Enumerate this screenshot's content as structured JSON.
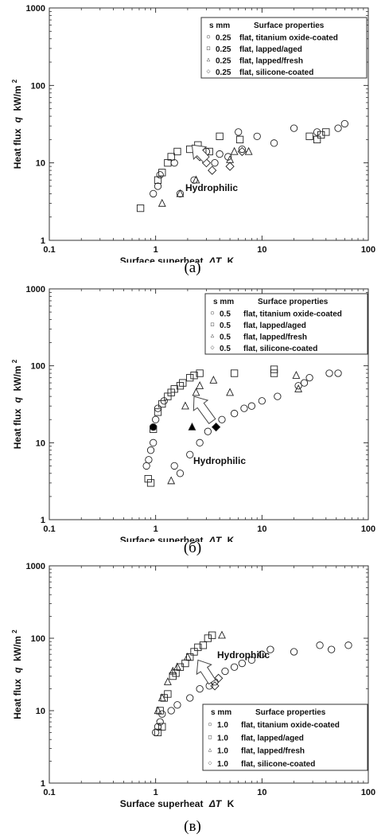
{
  "chart_data": [
    {
      "type": "scatter",
      "caption": "(а)",
      "xlabel": "Surface superheat",
      "xsymbol": "ΔT",
      "xunit": "K",
      "ylabel": "Heat flux",
      "ysymbol": "q",
      "yunit": "kW/m",
      "yunit_sup": "2",
      "xscale": "log",
      "yscale": "log",
      "xlim": [
        0.1,
        100
      ],
      "ylim": [
        1,
        1000
      ],
      "xticks": [
        "0.1",
        "1",
        "10",
        "100"
      ],
      "yticks": [
        "1",
        "10",
        "100",
        "1000"
      ],
      "legend_header": [
        "s mm",
        "Surface properties"
      ],
      "legend_position": "top-right",
      "legend": [
        {
          "s": "0.25",
          "label": "flat, titanium oxide-coated"
        },
        {
          "s": "0.25",
          "label": "flat, lapped/aged"
        },
        {
          "s": "0.25",
          "label": "flat, lapped/fresh"
        },
        {
          "s": "0.25",
          "label": "flat, silicone-coated"
        }
      ],
      "annotation": "Hydrophilic",
      "arrow": {
        "from": [
          3.0,
          11
        ],
        "to": [
          2.2,
          17
        ]
      },
      "series": [
        {
          "marker": "circle",
          "points": [
            [
              0.95,
              4
            ],
            [
              1.05,
              5
            ],
            [
              1.1,
              7
            ],
            [
              1.5,
              10
            ],
            [
              1.7,
              4
            ],
            [
              2.3,
              6
            ],
            [
              3,
              14
            ],
            [
              3.6,
              10
            ],
            [
              4,
              13
            ],
            [
              4.8,
              12
            ],
            [
              6,
              25
            ],
            [
              6.5,
              15
            ],
            [
              9,
              22
            ],
            [
              13,
              18
            ],
            [
              20,
              28
            ],
            [
              33,
              25
            ],
            [
              52,
              28
            ],
            [
              60,
              32
            ]
          ]
        },
        {
          "marker": "square",
          "points": [
            [
              0.72,
              2.6
            ],
            [
              1.05,
              6
            ],
            [
              1.15,
              7.5
            ],
            [
              1.3,
              10
            ],
            [
              1.4,
              12
            ],
            [
              1.6,
              14
            ],
            [
              2.1,
              15
            ],
            [
              2.5,
              17
            ],
            [
              3.2,
              14
            ],
            [
              4,
              22
            ],
            [
              6.2,
              20
            ],
            [
              28,
              22
            ],
            [
              33,
              20
            ],
            [
              36,
              23
            ],
            [
              40,
              25
            ]
          ]
        },
        {
          "marker": "triangle",
          "points": [
            [
              1.15,
              3
            ],
            [
              1.7,
              4
            ],
            [
              2.4,
              6
            ],
            [
              5,
              11
            ],
            [
              5.5,
              14
            ],
            [
              7.5,
              14
            ]
          ]
        },
        {
          "marker": "diamond",
          "points": [
            [
              2.6,
              12
            ],
            [
              3,
              10
            ],
            [
              3.4,
              8
            ],
            [
              5,
              9
            ],
            [
              6.5,
              14
            ]
          ]
        }
      ]
    },
    {
      "type": "scatter",
      "caption": "(б)",
      "xlabel": "Surface superheat",
      "xsymbol": "ΔT",
      "xunit": "K",
      "ylabel": "Heat flux",
      "ysymbol": "q",
      "yunit": "kW/m",
      "yunit_sup": "2",
      "xscale": "log",
      "yscale": "log",
      "xlim": [
        0.1,
        100
      ],
      "ylim": [
        1,
        1000
      ],
      "xticks": [
        "0.1",
        "1",
        "10",
        "100"
      ],
      "yticks": [
        "1",
        "10",
        "100",
        "1000"
      ],
      "legend_header": [
        "s mm",
        "Surface properties"
      ],
      "legend_position": "top-right",
      "legend": [
        {
          "s": "0.5",
          "label": "flat, titanium oxide-coated"
        },
        {
          "s": "0.5",
          "label": "flat, lapped/aged"
        },
        {
          "s": "0.5",
          "label": "flat, lapped/fresh"
        },
        {
          "s": "0.5",
          "label": "flat, silicone-coated"
        }
      ],
      "annotation": "Hydrophilic",
      "arrow": {
        "from": [
          3.4,
          19
        ],
        "to": [
          2.3,
          40
        ]
      },
      "series": [
        {
          "marker": "circle",
          "points": [
            [
              0.82,
              5
            ],
            [
              0.86,
              6
            ],
            [
              0.9,
              8
            ],
            [
              0.95,
              10
            ],
            [
              1.0,
              20
            ],
            [
              1.05,
              28
            ],
            [
              1.2,
              35
            ],
            [
              1.5,
              5
            ],
            [
              1.7,
              4
            ],
            [
              2.1,
              7
            ],
            [
              2.6,
              10
            ],
            [
              3.1,
              14
            ],
            [
              4.2,
              20
            ],
            [
              5.5,
              24
            ],
            [
              6.8,
              28
            ],
            [
              8,
              30
            ],
            [
              10,
              35
            ],
            [
              14,
              40
            ],
            [
              22,
              55
            ],
            [
              25,
              60
            ],
            [
              28,
              70
            ],
            [
              43,
              80
            ],
            [
              52,
              80
            ]
          ]
        },
        {
          "marker": "square",
          "points": [
            [
              0.85,
              3.4
            ],
            [
              0.9,
              3
            ],
            [
              0.95,
              15
            ],
            [
              1.05,
              25
            ],
            [
              1.15,
              32
            ],
            [
              1.3,
              40
            ],
            [
              1.4,
              45
            ],
            [
              1.5,
              50
            ],
            [
              1.7,
              55
            ],
            [
              1.8,
              60
            ],
            [
              2.1,
              70
            ],
            [
              2.3,
              75
            ],
            [
              2.6,
              80
            ],
            [
              5.5,
              80
            ],
            [
              13,
              80
            ],
            [
              13,
              90
            ]
          ]
        },
        {
          "marker": "triangle",
          "points": [
            [
              1.4,
              3.2
            ],
            [
              1.9,
              30
            ],
            [
              2.4,
              45
            ],
            [
              2.6,
              55
            ],
            [
              3.5,
              65
            ],
            [
              5,
              45
            ],
            [
              21,
              75
            ],
            [
              22,
              50
            ]
          ]
        },
        {
          "marker": "diamond",
          "points": [
            [
              2.6,
              30
            ],
            [
              2.9,
              25
            ]
          ]
        },
        {
          "marker": "circle-filled",
          "points": [
            [
              0.95,
              16
            ]
          ]
        },
        {
          "marker": "triangle-filled",
          "points": [
            [
              2.2,
              16
            ]
          ]
        },
        {
          "marker": "diamond-filled",
          "points": [
            [
              3.7,
              16
            ]
          ]
        }
      ]
    },
    {
      "type": "scatter",
      "caption": "(в)",
      "xlabel": "Surface superheat",
      "xsymbol": "ΔT",
      "xunit": "K",
      "ylabel": "Heat flux",
      "ysymbol": "q",
      "yunit": "kW/m",
      "yunit_sup": "2",
      "xscale": "log",
      "yscale": "log",
      "xlim": [
        0.1,
        100
      ],
      "ylim": [
        1,
        1000
      ],
      "xticks": [
        "0.1",
        "1",
        "10",
        "100"
      ],
      "yticks": [
        "1",
        "10",
        "100",
        "1000"
      ],
      "legend_header": [
        "s mm",
        "Surface properties"
      ],
      "legend_position": "bottom-right",
      "legend": [
        {
          "s": "1.0",
          "label": "flat, titanium oxide-coated"
        },
        {
          "s": "1.0",
          "label": "flat, lapped/aged"
        },
        {
          "s": "1.0",
          "label": "flat, lapped/fresh"
        },
        {
          "s": "1.0",
          "label": "flat, silicone-coated"
        }
      ],
      "annotation": "Hydrophilic",
      "arrow": {
        "from": [
          3.4,
          25
        ],
        "to": [
          2.5,
          50
        ]
      },
      "series": [
        {
          "marker": "circle",
          "points": [
            [
              1.0,
              5
            ],
            [
              1.05,
              6
            ],
            [
              1.1,
              7
            ],
            [
              1.15,
              9
            ],
            [
              1.4,
              10
            ],
            [
              1.6,
              12
            ],
            [
              2.1,
              15
            ],
            [
              2.6,
              20
            ],
            [
              3.2,
              22
            ],
            [
              3.6,
              25
            ],
            [
              4.5,
              35
            ],
            [
              5.5,
              40
            ],
            [
              6.5,
              45
            ],
            [
              8,
              50
            ],
            [
              10,
              60
            ],
            [
              12,
              70
            ],
            [
              20,
              65
            ],
            [
              35,
              80
            ],
            [
              45,
              70
            ],
            [
              65,
              80
            ]
          ]
        },
        {
          "marker": "square",
          "points": [
            [
              1.05,
              5
            ],
            [
              1.1,
              10
            ],
            [
              1.15,
              6
            ],
            [
              1.2,
              15
            ],
            [
              1.3,
              17
            ],
            [
              1.45,
              30
            ],
            [
              1.55,
              33
            ],
            [
              1.7,
              40
            ],
            [
              1.9,
              45
            ],
            [
              2.1,
              55
            ],
            [
              2.3,
              65
            ],
            [
              2.5,
              75
            ],
            [
              2.8,
              80
            ],
            [
              3.1,
              100
            ],
            [
              3.4,
              110
            ]
          ]
        },
        {
          "marker": "triangle",
          "points": [
            [
              1.05,
              10
            ],
            [
              1.15,
              15
            ],
            [
              1.3,
              25
            ],
            [
              1.45,
              35
            ],
            [
              1.6,
              40
            ],
            [
              2.0,
              55
            ],
            [
              4.2,
              110
            ]
          ]
        },
        {
          "marker": "diamond",
          "points": [
            [
              3.6,
              22
            ],
            [
              3.9,
              28
            ]
          ]
        }
      ]
    }
  ]
}
